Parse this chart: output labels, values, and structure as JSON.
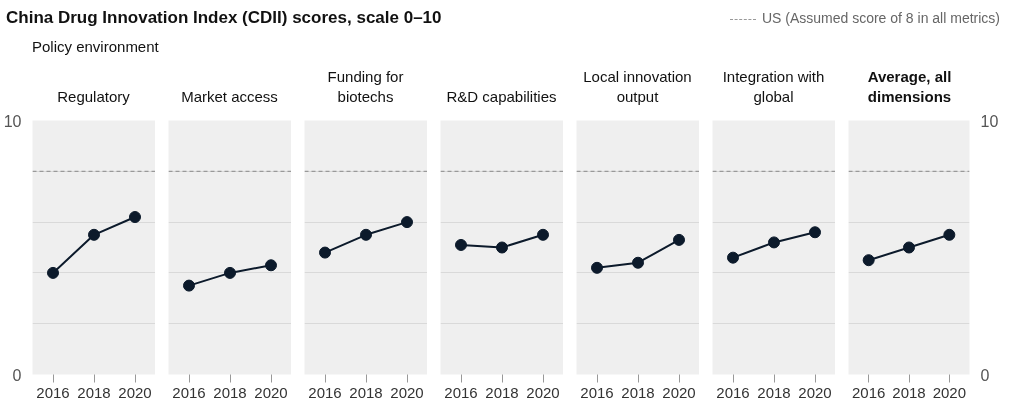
{
  "chart_data": [
    {
      "type": "line",
      "title": "Regulatory",
      "annotations": [
        "China Drug Innovation Index (CDII) scores, scale 0–10",
        "Policy environment"
      ],
      "x": [
        2016,
        2018,
        2020
      ],
      "series": [
        {
          "color": "#0c1a2b",
          "values": [
            4.0,
            5.5,
            6.2
          ]
        }
      ],
      "xlim": [
        2015,
        2021
      ],
      "xticks": [
        2016,
        2018,
        2020
      ],
      "ylim": [
        0,
        10
      ],
      "yticks": [
        0,
        {
          "value": 2,
          "label": null
        },
        {
          "value": 4,
          "label": null
        },
        {
          "value": 6,
          "label": null
        },
        {
          "value": 8,
          "label": null
        },
        10
      ],
      "grid": "y",
      "marker": "circle",
      "ref_lines": [
        {
          "axis": "y",
          "value": 8,
          "label": "US (Assumed score of 8 in all metrics)",
          "color": "#999999",
          "line_style": "dashed"
        }
      ]
    },
    {
      "type": "line",
      "title": "Market access",
      "x": [
        2016,
        2018,
        2020
      ],
      "series": [
        {
          "color": "#0c1a2b",
          "values": [
            3.5,
            4.0,
            4.3
          ]
        }
      ],
      "xlim": [
        2015,
        2021
      ],
      "xticks": [
        2016,
        2018,
        2020
      ],
      "ylim": [
        0,
        10
      ],
      "yticks": [
        0,
        {
          "value": 2,
          "label": null
        },
        {
          "value": 4,
          "label": null
        },
        {
          "value": 6,
          "label": null
        },
        {
          "value": 8,
          "label": null
        },
        10
      ],
      "grid": "y",
      "marker": "circle",
      "tick_labels": "x",
      "ref_lines": [
        {
          "axis": "y",
          "value": 8,
          "color": "#999999",
          "line_style": "dashed"
        }
      ]
    },
    {
      "type": "line",
      "title": "Funding for biotechs",
      "x": [
        2016,
        2018,
        2020
      ],
      "series": [
        {
          "color": "#0c1a2b",
          "values": [
            4.8,
            5.5,
            6.0
          ]
        }
      ],
      "xlim": [
        2015,
        2021
      ],
      "xticks": [
        2016,
        2018,
        2020
      ],
      "ylim": [
        0,
        10
      ],
      "yticks": [
        0,
        {
          "value": 2,
          "label": null
        },
        {
          "value": 4,
          "label": null
        },
        {
          "value": 6,
          "label": null
        },
        {
          "value": 8,
          "label": null
        },
        10
      ],
      "grid": "y",
      "marker": "circle",
      "tick_labels": "x",
      "ref_lines": [
        {
          "axis": "y",
          "value": 8,
          "color": "#999999",
          "line_style": "dashed"
        }
      ]
    },
    {
      "type": "line",
      "title": "R&D capabilities",
      "x": [
        2016,
        2018,
        2020
      ],
      "series": [
        {
          "color": "#0c1a2b",
          "values": [
            5.1,
            5.0,
            5.5
          ]
        }
      ],
      "xlim": [
        2015,
        2021
      ],
      "xticks": [
        2016,
        2018,
        2020
      ],
      "ylim": [
        0,
        10
      ],
      "yticks": [
        0,
        {
          "value": 2,
          "label": null
        },
        {
          "value": 4,
          "label": null
        },
        {
          "value": 6,
          "label": null
        },
        {
          "value": 8,
          "label": null
        },
        10
      ],
      "grid": "y",
      "marker": "circle",
      "tick_labels": "x",
      "ref_lines": [
        {
          "axis": "y",
          "value": 8,
          "color": "#999999",
          "line_style": "dashed"
        }
      ]
    },
    {
      "type": "line",
      "title": "Local innovation output",
      "x": [
        2016,
        2018,
        2020
      ],
      "series": [
        {
          "color": "#0c1a2b",
          "values": [
            4.2,
            4.4,
            5.3
          ]
        }
      ],
      "xlim": [
        2015,
        2021
      ],
      "xticks": [
        2016,
        2018,
        2020
      ],
      "ylim": [
        0,
        10
      ],
      "yticks": [
        0,
        {
          "value": 2,
          "label": null
        },
        {
          "value": 4,
          "label": null
        },
        {
          "value": 6,
          "label": null
        },
        {
          "value": 8,
          "label": null
        },
        10
      ],
      "grid": "y",
      "marker": "circle",
      "tick_labels": "x",
      "ref_lines": [
        {
          "axis": "y",
          "value": 8,
          "color": "#999999",
          "line_style": "dashed"
        }
      ]
    },
    {
      "type": "line",
      "title": "Integration with global",
      "x": [
        2016,
        2018,
        2020
      ],
      "series": [
        {
          "color": "#0c1a2b",
          "values": [
            4.6,
            5.2,
            5.6
          ]
        }
      ],
      "xlim": [
        2015,
        2021
      ],
      "xticks": [
        2016,
        2018,
        2020
      ],
      "ylim": [
        0,
        10
      ],
      "yticks": [
        0,
        {
          "value": 2,
          "label": null
        },
        {
          "value": 4,
          "label": null
        },
        {
          "value": 6,
          "label": null
        },
        {
          "value": 8,
          "label": null
        },
        10
      ],
      "grid": "y",
      "marker": "circle",
      "tick_labels": "x",
      "ref_lines": [
        {
          "axis": "y",
          "value": 8,
          "color": "#999999",
          "line_style": "dashed"
        }
      ]
    },
    {
      "type": "line",
      "title": "Average, all dimensions",
      "x": [
        2016,
        2018,
        2020
      ],
      "series": [
        {
          "color": "#0c1a2b",
          "values": [
            4.5,
            5.0,
            5.5
          ]
        }
      ],
      "xlim": [
        2015,
        2021
      ],
      "xticks": [
        2016,
        2018,
        2020
      ],
      "ylim": [
        0,
        10
      ],
      "yticks": [
        0,
        {
          "value": 2,
          "label": null
        },
        {
          "value": 4,
          "label": null
        },
        {
          "value": 6,
          "label": null
        },
        {
          "value": 8,
          "label": null
        },
        10
      ],
      "grid": "y",
      "marker": "circle",
      "ref_lines": [
        {
          "axis": "y",
          "value": 8,
          "color": "#999999",
          "line_style": "dashed"
        }
      ]
    }
  ]
}
